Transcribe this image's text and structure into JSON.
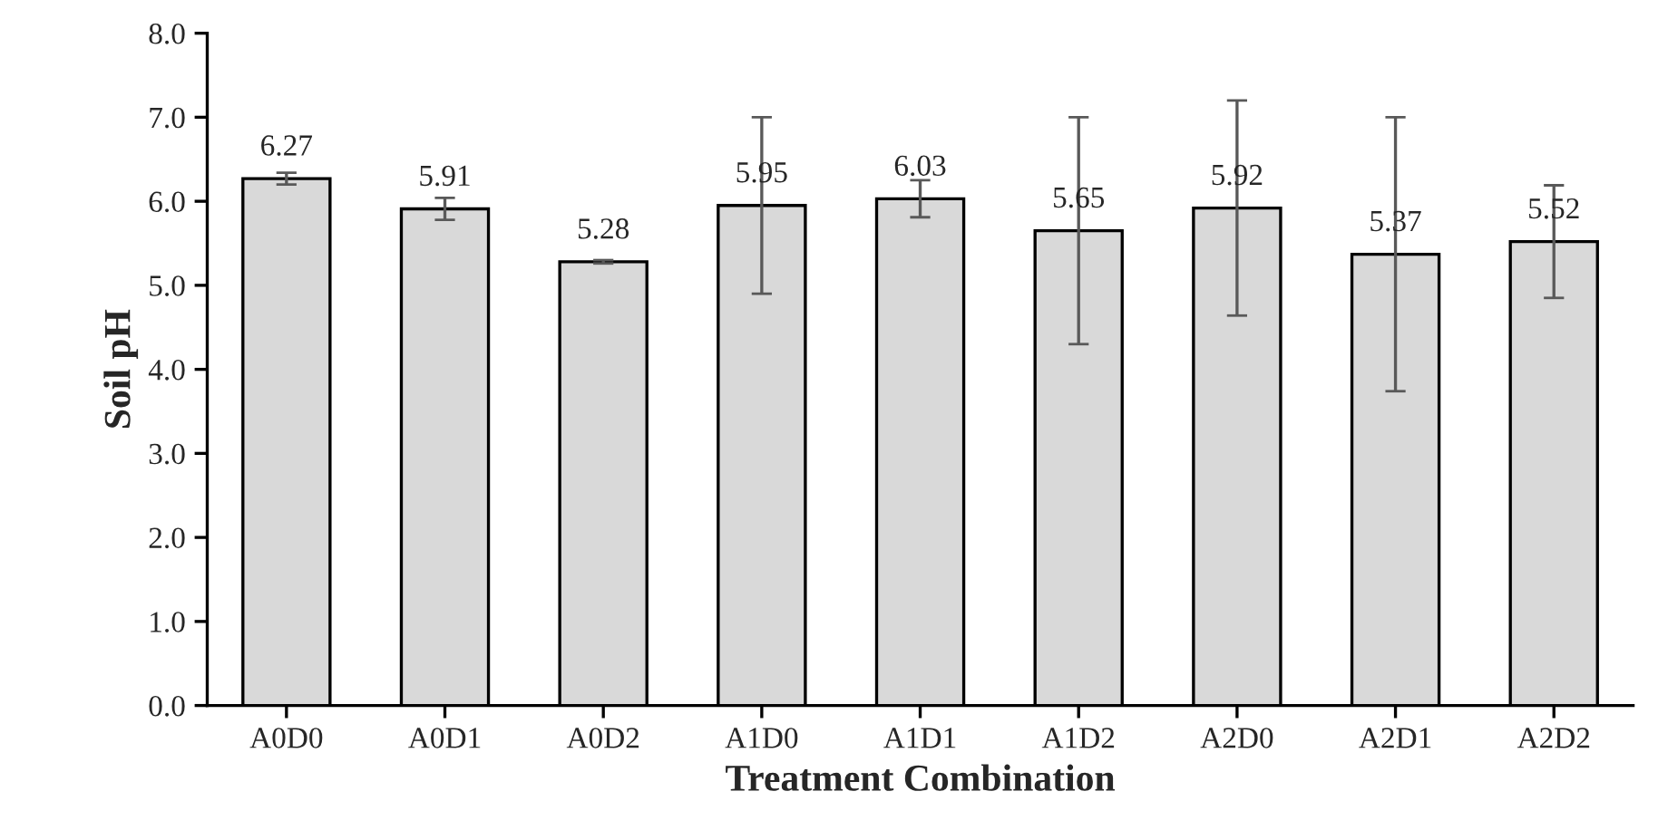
{
  "chart_data": {
    "type": "bar",
    "xlabel": "Treatment Combination",
    "ylabel": "Soil pH",
    "categories": [
      "A0D0",
      "A0D1",
      "A0D2",
      "A1D0",
      "A1D1",
      "A1D2",
      "A2D0",
      "A2D1",
      "A2D2"
    ],
    "values": [
      6.27,
      5.91,
      5.28,
      5.95,
      6.03,
      5.65,
      5.92,
      5.37,
      5.52
    ],
    "errors": [
      0.07,
      0.13,
      0.02,
      1.05,
      0.22,
      1.35,
      1.28,
      1.63,
      0.67
    ],
    "color": "#d9d9d9",
    "data_labels": true,
    "grid": false,
    "legend": false,
    "ylim": [
      0,
      8
    ],
    "yticks": [
      {
        "value": 0,
        "label": "0.0"
      },
      {
        "value": 1,
        "label": "1.0"
      },
      {
        "value": 2,
        "label": "2.0"
      },
      {
        "value": 3,
        "label": "3.0"
      },
      {
        "value": 4,
        "label": "4.0"
      },
      {
        "value": 5,
        "label": "5.0"
      },
      {
        "value": 6,
        "label": "6.0"
      },
      {
        "value": 7,
        "label": "7.0"
      },
      {
        "value": 8,
        "label": "8.0"
      }
    ]
  }
}
